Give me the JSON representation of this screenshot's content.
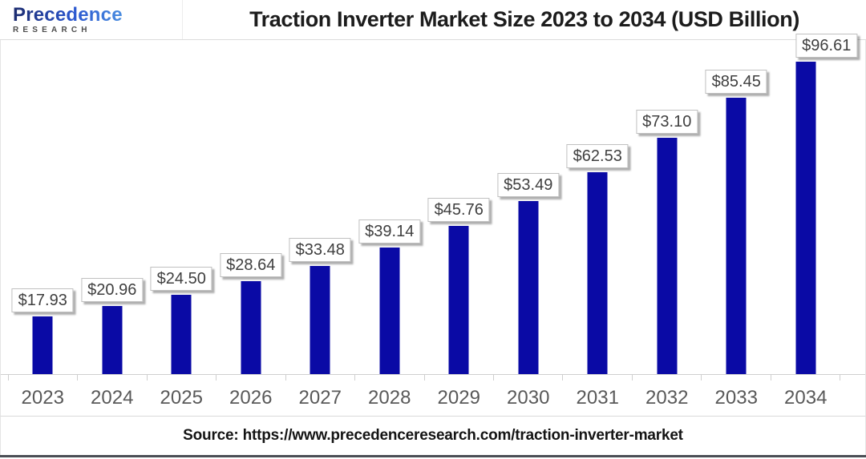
{
  "header": {
    "logo": {
      "brand": "Precedence",
      "sub": "RESEARCH"
    },
    "title": "Traction Inverter Market Size 2023 to 2034 (USD Billion)"
  },
  "chart_data": {
    "type": "bar",
    "title": "Traction Inverter Market Size 2023 to 2034 (USD Billion)",
    "categories": [
      "2023",
      "2024",
      "2025",
      "2026",
      "2027",
      "2028",
      "2029",
      "2030",
      "2031",
      "2032",
      "2033",
      "2034"
    ],
    "values": [
      17.93,
      20.96,
      24.5,
      28.64,
      33.48,
      39.14,
      45.76,
      53.49,
      62.53,
      73.1,
      85.45,
      96.61
    ],
    "value_labels": [
      "$17.93",
      "$20.96",
      "$24.50",
      "$28.64",
      "$33.48",
      "$39.14",
      "$45.76",
      "$53.49",
      "$62.53",
      "$73.10",
      "$85.45",
      "$96.61"
    ],
    "xlabel": "",
    "ylabel": "",
    "ylim": [
      0,
      100
    ],
    "grid": false,
    "legend": false,
    "bar_color": "#0a0aa5",
    "label_box_border": "#c0c0c0",
    "axis_color": "#cfcfcf",
    "year_label_color": "#595959"
  },
  "footer": {
    "source": "Source: https://www.precedenceresearch.com/traction-inverter-market"
  }
}
